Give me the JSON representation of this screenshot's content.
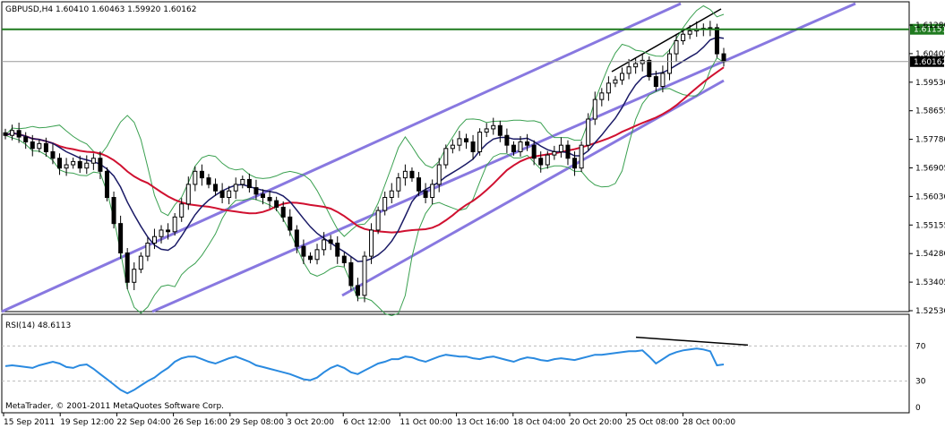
{
  "window": {
    "symbol_line": "GBPUSD,H4  1.60410 1.60463 1.59920 1.60162",
    "copyright": "MetaTrader, © 2001-2011 MetaQuotes Software Corp."
  },
  "chart_data": {
    "type": "candlestick",
    "symbol": "GBPUSD",
    "timeframe": "H4",
    "ohlc_last": {
      "open": 1.6041,
      "high": 1.60463,
      "low": 1.5992,
      "close": 1.60162
    },
    "price_ticks": [
      "1.61280",
      "1.60405",
      "1.59530",
      "1.58655",
      "1.57780",
      "1.56905",
      "1.56030",
      "1.55155",
      "1.54280",
      "1.53405",
      "1.52530"
    ],
    "price_range": [
      1.5253,
      1.6165
    ],
    "highlight_labels": [
      {
        "text": "1.61151",
        "value": 1.61151,
        "color": "#1f7a1f"
      },
      {
        "text": "1.60162",
        "value": 1.60162,
        "color": "#000000"
      }
    ],
    "time_labels": [
      "15 Sep 2011",
      "19 Sep 12:00",
      "22 Sep 04:00",
      "26 Sep 16:00",
      "29 Sep 08:00",
      "3 Oct 20:00",
      "6 Oct 12:00",
      "11 Oct 00:00",
      "13 Oct 16:00",
      "18 Oct 04:00",
      "20 Oct 20:00",
      "25 Oct 08:00",
      "28 Oct 00:00"
    ],
    "closes": [
      1.579,
      1.5805,
      1.5785,
      1.577,
      1.575,
      1.5765,
      1.574,
      1.572,
      1.569,
      1.57,
      1.571,
      1.569,
      1.5705,
      1.572,
      1.568,
      1.56,
      1.552,
      1.543,
      1.534,
      1.538,
      1.542,
      1.546,
      1.548,
      1.55,
      1.5495,
      1.554,
      1.558,
      1.564,
      1.568,
      1.566,
      1.564,
      1.562,
      1.56,
      1.562,
      1.564,
      1.5655,
      1.563,
      1.561,
      1.56,
      1.559,
      1.557,
      1.554,
      1.55,
      1.545,
      1.542,
      1.541,
      1.544,
      1.547,
      1.546,
      1.542,
      1.54,
      1.533,
      1.53,
      1.542,
      1.55,
      1.556,
      1.56,
      1.562,
      1.566,
      1.568,
      1.566,
      1.562,
      1.56,
      1.564,
      1.57,
      1.575,
      1.576,
      1.578,
      1.577,
      1.574,
      1.58,
      1.581,
      1.582,
      1.579,
      1.576,
      1.574,
      1.577,
      1.576,
      1.572,
      1.57,
      1.573,
      1.574,
      1.576,
      1.572,
      1.569,
      1.576,
      1.584,
      1.59,
      1.592,
      1.595,
      1.596,
      1.598,
      1.6,
      1.601,
      1.602,
      1.597,
      1.594,
      1.598,
      1.604,
      1.608,
      1.61,
      1.611,
      1.6115,
      1.6118,
      1.612,
      1.604,
      1.6016
    ],
    "indicators": {
      "moving_averages": [
        {
          "color": "#d01030"
        },
        {
          "color": "#1a1a66"
        }
      ],
      "bollinger_bands": {
        "color": "#3aa050"
      },
      "channel_lines": {
        "color": "#8878e0"
      },
      "support_line": {
        "value": 1.61151,
        "color": "#1f7a1f"
      },
      "current_price_line": {
        "value": 1.60162,
        "color": "#999999"
      },
      "divergence_line_color": "#000000"
    },
    "rsi": {
      "label": "RSI(14) 48.6113",
      "period": 14,
      "last": 48.6113,
      "range": [
        0,
        100
      ],
      "levels": [
        70,
        30
      ],
      "level_labels": [
        "70",
        "30",
        "0"
      ],
      "values": [
        47,
        48,
        47,
        46,
        45,
        48,
        50,
        52,
        50,
        46,
        45,
        48,
        49,
        44,
        38,
        32,
        26,
        20,
        16,
        20,
        25,
        30,
        34,
        40,
        45,
        52,
        56,
        58,
        58,
        55,
        52,
        50,
        53,
        56,
        58,
        55,
        52,
        48,
        46,
        44,
        42,
        40,
        38,
        35,
        32,
        31,
        34,
        40,
        45,
        48,
        45,
        40,
        38,
        42,
        46,
        50,
        52,
        55,
        55,
        58,
        57,
        54,
        52,
        55,
        58,
        60,
        59,
        58,
        58,
        56,
        55,
        57,
        58,
        56,
        54,
        52,
        55,
        57,
        56,
        54,
        53,
        55,
        56,
        55,
        54,
        56,
        58,
        60,
        60,
        61,
        62,
        63,
        64,
        64,
        65,
        58,
        50,
        55,
        60,
        63,
        65,
        66,
        67,
        66,
        64,
        48,
        49
      ],
      "color": "#2a8ae0"
    }
  }
}
